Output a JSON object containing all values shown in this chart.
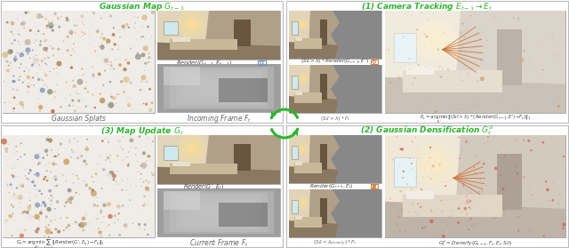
{
  "fig_width": 6.4,
  "fig_height": 2.79,
  "dpi": 100,
  "background_color": "#ffffff",
  "green": "#2db52d",
  "title_fontsize": 6.5,
  "label_fontsize": 5.5,
  "formula_fontsize": 5.0,
  "small_formula_fontsize": 4.2,
  "orange": "#d4793a",
  "blue_camera": "#6b8cba",
  "border_gray": "#999999",
  "text_gray": "#444444"
}
